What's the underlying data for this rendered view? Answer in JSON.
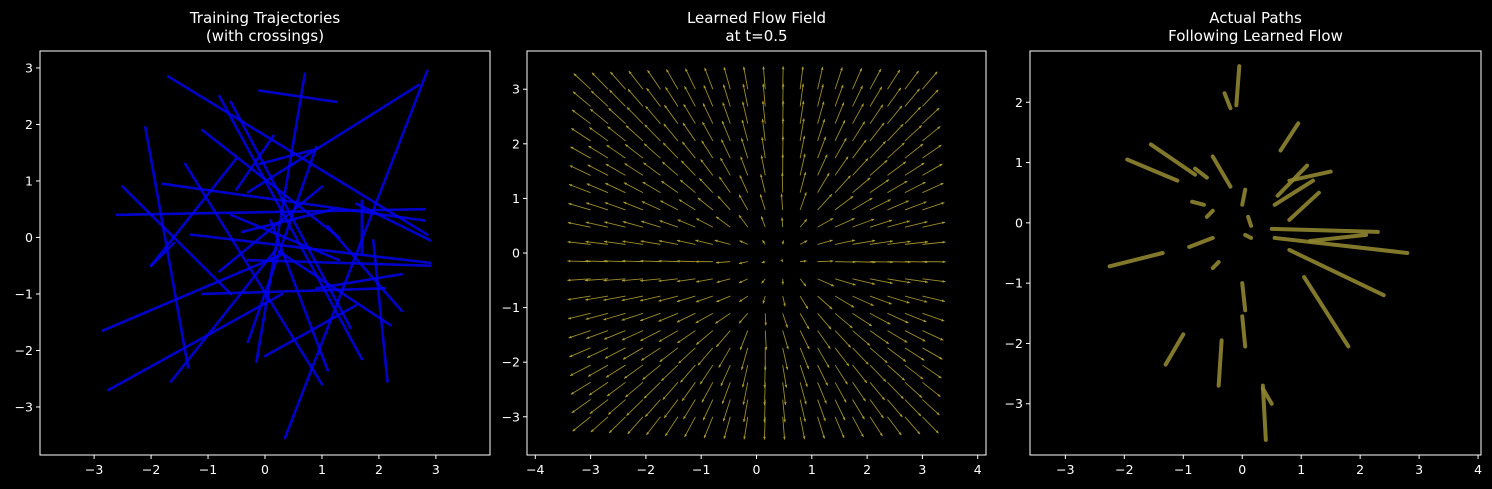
{
  "chart_data": [
    {
      "type": "line",
      "title": "Training Trajectories\n(with crossings)",
      "xlabel": "",
      "ylabel": "",
      "xlim": [
        -3.95,
        3.95
      ],
      "ylim": [
        -3.85,
        3.3
      ],
      "xticks": [
        -3,
        -2,
        -1,
        0,
        1,
        2,
        3
      ],
      "yticks": [
        -3,
        -2,
        -1,
        0,
        1,
        2,
        3
      ],
      "color": "#0000ee",
      "segments": [
        [
          [
            -1.7,
            2.85
          ],
          [
            2.85,
            0.05
          ]
        ],
        [
          [
            -1.1,
            1.9
          ],
          [
            1.3,
            0.0
          ]
        ],
        [
          [
            -2.5,
            0.9
          ],
          [
            -0.6,
            -1.0
          ]
        ],
        [
          [
            -2.6,
            0.4
          ],
          [
            2.8,
            0.5
          ]
        ],
        [
          [
            -2.85,
            -1.65
          ],
          [
            0.3,
            -0.3
          ]
        ],
        [
          [
            -2.75,
            -2.7
          ],
          [
            0.3,
            -1.0
          ]
        ],
        [
          [
            -2.1,
            1.95
          ],
          [
            -1.35,
            -2.3
          ]
        ],
        [
          [
            -1.65,
            -2.55
          ],
          [
            0.2,
            -0.2
          ]
        ],
        [
          [
            -2.0,
            -0.5
          ],
          [
            -0.5,
            1.4
          ]
        ],
        [
          [
            -1.8,
            0.95
          ],
          [
            2.8,
            0.3
          ]
        ],
        [
          [
            -1.4,
            1.3
          ],
          [
            1.0,
            -2.6
          ]
        ],
        [
          [
            -0.8,
            2.5
          ],
          [
            1.7,
            -2.15
          ]
        ],
        [
          [
            -0.5,
            0.85
          ],
          [
            0.15,
            1.8
          ]
        ],
        [
          [
            -0.3,
            0.8
          ],
          [
            2.7,
            2.7
          ]
        ],
        [
          [
            -0.4,
            0.1
          ],
          [
            1.2,
            0.5
          ]
        ],
        [
          [
            -0.6,
            2.4
          ],
          [
            1.5,
            -1.6
          ]
        ],
        [
          [
            -0.15,
            -2.2
          ],
          [
            0.7,
            2.9
          ]
        ],
        [
          [
            0.35,
            -3.55
          ],
          [
            2.85,
            2.95
          ]
        ],
        [
          [
            0.9,
            -0.9
          ],
          [
            2.4,
            -0.65
          ]
        ],
        [
          [
            -1.1,
            -1.0
          ],
          [
            2.1,
            -0.9
          ]
        ],
        [
          [
            -1.3,
            0.05
          ],
          [
            2.9,
            -0.45
          ]
        ],
        [
          [
            -0.6,
            0.4
          ],
          [
            1.3,
            -0.4
          ]
        ],
        [
          [
            0.25,
            -0.25
          ],
          [
            2.2,
            -1.55
          ]
        ],
        [
          [
            -0.1,
            2.6
          ],
          [
            1.25,
            2.4
          ]
        ],
        [
          [
            -0.3,
            -0.4
          ],
          [
            2.9,
            -0.5
          ]
        ],
        [
          [
            1.1,
            -2.35
          ],
          [
            0.1,
            0.3
          ]
        ],
        [
          [
            -0.3,
            -1.85
          ],
          [
            0.9,
            1.6
          ]
        ],
        [
          [
            2.4,
            -1.3
          ],
          [
            1.1,
            0.2
          ]
        ],
        [
          [
            1.9,
            -0.05
          ],
          [
            2.15,
            -2.55
          ]
        ],
        [
          [
            -0.1,
            1.3
          ],
          [
            0.85,
            1.55
          ]
        ],
        [
          [
            0.0,
            -2.1
          ],
          [
            1.6,
            -1.2
          ]
        ],
        [
          [
            1.6,
            0.6
          ],
          [
            2.9,
            -0.05
          ]
        ],
        [
          [
            1.7,
            -0.3
          ],
          [
            1.7,
            0.65
          ]
        ],
        [
          [
            -0.8,
            -0.6
          ],
          [
            1.0,
            0.9
          ]
        ],
        [
          [
            -2.0,
            -0.5
          ],
          [
            -1.6,
            -0.1
          ]
        ]
      ]
    },
    {
      "type": "quiver",
      "title": "Learned Flow Field\nat t=0.5",
      "xlabel": "",
      "ylabel": "",
      "xlim": [
        -4.15,
        4.15
      ],
      "ylim": [
        -3.7,
        3.7
      ],
      "xticks": [
        -4,
        -3,
        -2,
        -1,
        0,
        1,
        2,
        3,
        4
      ],
      "yticks": [
        -3,
        -2,
        -1,
        0,
        1,
        2,
        3
      ],
      "grid": {
        "min": -3,
        "max": 3,
        "n": 20
      },
      "color": "#b5a531"
    },
    {
      "type": "line",
      "title": "Actual Paths\nFollowing Learned Flow",
      "xlabel": "",
      "ylabel": "",
      "xlim": [
        -3.6,
        4.05
      ],
      "ylim": [
        -3.85,
        2.85
      ],
      "xticks": [
        -3,
        -2,
        -1,
        0,
        1,
        2,
        3,
        4
      ],
      "yticks": [
        -3,
        -2,
        -1,
        0,
        1,
        2
      ],
      "color": "#8f8530",
      "segments": [
        [
          [
            -0.3,
            2.15
          ],
          [
            -0.2,
            1.9
          ]
        ],
        [
          [
            -0.05,
            2.6
          ],
          [
            -0.1,
            1.95
          ]
        ],
        [
          [
            -1.55,
            1.3
          ],
          [
            -0.8,
            0.8
          ]
        ],
        [
          [
            -1.95,
            1.05
          ],
          [
            -1.1,
            0.7
          ]
        ],
        [
          [
            -0.5,
            1.1
          ],
          [
            -0.2,
            0.6
          ]
        ],
        [
          [
            -0.8,
            0.9
          ],
          [
            -0.6,
            0.75
          ]
        ],
        [
          [
            0.95,
            1.65
          ],
          [
            0.65,
            1.2
          ]
        ],
        [
          [
            -2.25,
            -0.72
          ],
          [
            -1.35,
            -0.5
          ]
        ],
        [
          [
            -1.3,
            -2.35
          ],
          [
            -1.0,
            -1.85
          ]
        ],
        [
          [
            0.4,
            -3.6
          ],
          [
            0.35,
            -2.7
          ]
        ],
        [
          [
            0.35,
            -2.75
          ],
          [
            0.5,
            -3.0
          ]
        ],
        [
          [
            -0.4,
            -2.7
          ],
          [
            -0.35,
            -1.95
          ]
        ],
        [
          [
            0.05,
            -2.05
          ],
          [
            0.0,
            -1.55
          ]
        ],
        [
          [
            0.05,
            -1.45
          ],
          [
            0.0,
            -1.0
          ]
        ],
        [
          [
            -0.5,
            -0.25
          ],
          [
            -0.9,
            -0.4
          ]
        ],
        [
          [
            -0.5,
            -0.75
          ],
          [
            -0.4,
            -0.65
          ]
        ],
        [
          [
            -0.65,
            0.3
          ],
          [
            -0.85,
            0.35
          ]
        ],
        [
          [
            -0.5,
            0.2
          ],
          [
            -0.6,
            0.1
          ]
        ],
        [
          [
            0.8,
            0.7
          ],
          [
            1.5,
            0.85
          ]
        ],
        [
          [
            0.6,
            0.45
          ],
          [
            1.1,
            0.95
          ]
        ],
        [
          [
            0.55,
            0.3
          ],
          [
            1.2,
            0.7
          ]
        ],
        [
          [
            0.8,
            0.05
          ],
          [
            1.3,
            0.5
          ]
        ],
        [
          [
            0.5,
            -0.1
          ],
          [
            2.3,
            -0.15
          ]
        ],
        [
          [
            0.55,
            -0.25
          ],
          [
            2.8,
            -0.5
          ]
        ],
        [
          [
            1.15,
            -0.3
          ],
          [
            2.1,
            -0.2
          ]
        ],
        [
          [
            0.8,
            -0.45
          ],
          [
            2.4,
            -1.2
          ]
        ],
        [
          [
            1.05,
            -0.9
          ],
          [
            1.8,
            -2.05
          ]
        ],
        [
          [
            0.1,
            0.1
          ],
          [
            0.15,
            -0.05
          ]
        ],
        [
          [
            0.05,
            -0.2
          ],
          [
            0.15,
            -0.25
          ]
        ],
        [
          [
            0.0,
            0.3
          ],
          [
            0.05,
            0.55
          ]
        ]
      ]
    }
  ]
}
